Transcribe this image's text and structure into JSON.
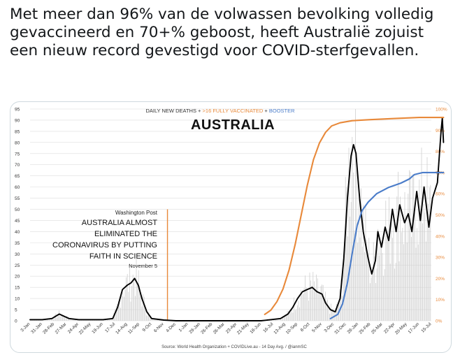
{
  "tweet": {
    "text": "Met meer dan 96% van de volwassen bevolking volledig gevaccineerd en 70+% geboost, heeft Australië zojuist een nieuw record gevestigd voor COVID-sterfgevallen."
  },
  "chart_data": {
    "type": "line",
    "title": "AUSTRALIA",
    "legend": {
      "deaths": "DAILY NEW DEATHS",
      "plus1": " + ",
      "vaccinated": ">16 FULLY VACCINATED",
      "plus2": " + ",
      "booster": "BOOSTER"
    },
    "colors": {
      "deaths": "#000000",
      "vaccinated": "#e8893a",
      "booster": "#4a7cc9",
      "grid": "#dddddd",
      "marker": "#e8893a"
    },
    "source": "Source: World Health Organization + COVIDLive.au - 14 Day Avg. / @ianmSC",
    "y_left": {
      "min": 0,
      "max": 95,
      "ticks": [
        0,
        5,
        10,
        15,
        20,
        25,
        30,
        35,
        40,
        45,
        50,
        55,
        60,
        65,
        70,
        75,
        80,
        85,
        90,
        95
      ]
    },
    "y_right": {
      "min": 0,
      "max": 100,
      "ticks": [
        "0%",
        "10%",
        "20%",
        "30%",
        "40%",
        "50%",
        "60%",
        "70%",
        "80%",
        "90%",
        "100%"
      ]
    },
    "x_labels": [
      "3-Jan",
      "31-Jan",
      "28-Feb",
      "27-Mar",
      "24-Apr",
      "22-May",
      "19-Jun",
      "17-Jul",
      "14-Aug",
      "11-Sep",
      "9-Oct",
      "6-Nov",
      "4-Dec",
      "1-Jan",
      "29-Jan",
      "26-Feb",
      "26-Mar",
      "23-Apr",
      "21-May",
      "18-Jun",
      "16-Jul",
      "13-Aug",
      "10-Sep",
      "8-Oct",
      "5-Nov",
      "3-Dec",
      "31-Dec",
      "28-Jan",
      "25-Feb",
      "25-Mar",
      "22-Apr",
      "20-May",
      "17-Jun",
      "15-Jul"
    ],
    "annotation": {
      "source": "Washington Post",
      "headline": [
        "AUSTRALIA ALMOST",
        "ELIMINATED THE",
        "CORONAVIRUS BY PUTTING",
        "FAITH IN SCIENCE"
      ],
      "date": "November 5",
      "x_index": 11.3
    },
    "series": [
      {
        "key": "deaths",
        "axis": "left",
        "points": [
          [
            0,
            0.5
          ],
          [
            1,
            0.5
          ],
          [
            1.8,
            1
          ],
          [
            2.4,
            3
          ],
          [
            2.8,
            2
          ],
          [
            3.2,
            1
          ],
          [
            4,
            0.5
          ],
          [
            5,
            0.5
          ],
          [
            6,
            0.5
          ],
          [
            6.8,
            1
          ],
          [
            7.2,
            6
          ],
          [
            7.6,
            14
          ],
          [
            8,
            16
          ],
          [
            8.3,
            17
          ],
          [
            8.6,
            19
          ],
          [
            8.9,
            16
          ],
          [
            9.2,
            10
          ],
          [
            9.6,
            4
          ],
          [
            10,
            1
          ],
          [
            11,
            0.3
          ],
          [
            12,
            0
          ],
          [
            13,
            0
          ],
          [
            14,
            0
          ],
          [
            15,
            0
          ],
          [
            16,
            0
          ],
          [
            17,
            0
          ],
          [
            18,
            0
          ],
          [
            19,
            0
          ],
          [
            19.8,
            0.5
          ],
          [
            20.6,
            1
          ],
          [
            21.2,
            3
          ],
          [
            21.6,
            6
          ],
          [
            22,
            10
          ],
          [
            22.4,
            13
          ],
          [
            22.8,
            14
          ],
          [
            23.2,
            15
          ],
          [
            23.6,
            13
          ],
          [
            24,
            12
          ],
          [
            24.3,
            8
          ],
          [
            24.7,
            5
          ],
          [
            25.1,
            4
          ],
          [
            25.5,
            10
          ],
          [
            25.8,
            28
          ],
          [
            26.1,
            55
          ],
          [
            26.4,
            74
          ],
          [
            26.6,
            79
          ],
          [
            26.8,
            75
          ],
          [
            27.1,
            55
          ],
          [
            27.4,
            40
          ],
          [
            27.8,
            28
          ],
          [
            28.1,
            21
          ],
          [
            28.4,
            27
          ],
          [
            28.6,
            40
          ],
          [
            28.9,
            33
          ],
          [
            29.2,
            42
          ],
          [
            29.5,
            36
          ],
          [
            29.8,
            50
          ],
          [
            30.1,
            40
          ],
          [
            30.4,
            52
          ],
          [
            30.8,
            44
          ],
          [
            31.1,
            48
          ],
          [
            31.4,
            40
          ],
          [
            31.8,
            58
          ],
          [
            32.1,
            45
          ],
          [
            32.4,
            60
          ],
          [
            32.8,
            42
          ],
          [
            33.1,
            55
          ],
          [
            33.5,
            62
          ],
          [
            33.8,
            85
          ],
          [
            33.9,
            91
          ],
          [
            34,
            80
          ]
        ]
      },
      {
        "key": "vaccinated",
        "axis": "right",
        "points": [
          [
            19.3,
            3
          ],
          [
            19.8,
            5
          ],
          [
            20.3,
            9
          ],
          [
            20.8,
            15
          ],
          [
            21.3,
            24
          ],
          [
            21.8,
            36
          ],
          [
            22.3,
            50
          ],
          [
            22.8,
            64
          ],
          [
            23.3,
            76
          ],
          [
            23.8,
            84
          ],
          [
            24.3,
            89
          ],
          [
            24.8,
            92
          ],
          [
            25.5,
            93.5
          ],
          [
            26.5,
            94.5
          ],
          [
            28,
            95
          ],
          [
            30,
            95.5
          ],
          [
            32,
            96
          ],
          [
            34,
            96
          ]
        ]
      },
      {
        "key": "booster",
        "axis": "right",
        "points": [
          [
            24.7,
            1
          ],
          [
            25.3,
            3
          ],
          [
            25.7,
            8
          ],
          [
            26.1,
            18
          ],
          [
            26.5,
            32
          ],
          [
            26.9,
            45
          ],
          [
            27.3,
            52
          ],
          [
            27.8,
            56
          ],
          [
            28.5,
            60
          ],
          [
            29.5,
            63
          ],
          [
            30.5,
            65
          ],
          [
            31.2,
            67
          ],
          [
            31.6,
            69
          ],
          [
            32.3,
            70
          ],
          [
            33.2,
            70
          ],
          [
            34,
            70
          ]
        ]
      }
    ]
  }
}
